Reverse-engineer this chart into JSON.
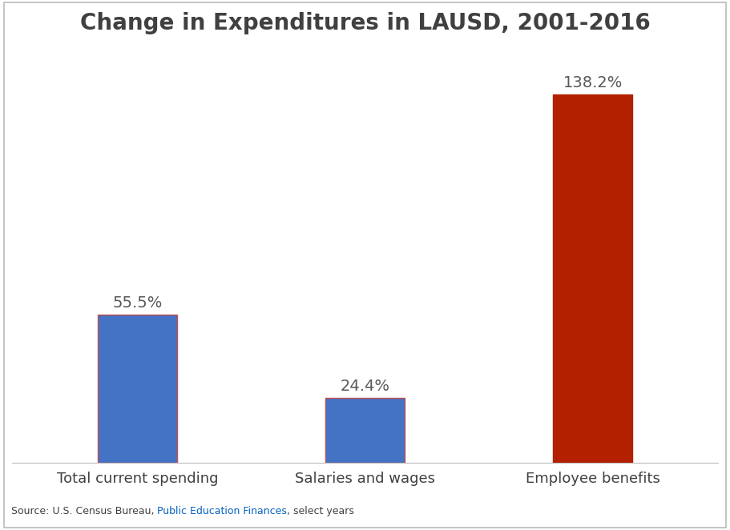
{
  "title": "Change in Expenditures in LAUSD, 2001-2016",
  "categories": [
    "Total current spending",
    "Salaries and wages",
    "Employee benefits"
  ],
  "values": [
    55.5,
    24.4,
    138.2
  ],
  "labels": [
    "55.5%",
    "24.4%",
    "138.2%"
  ],
  "bar_colors": [
    "#4472C4",
    "#4472C4",
    "#B22000"
  ],
  "bar_edge_colors": [
    "#C0504D",
    "#C0504D",
    "#B22000"
  ],
  "background_color": "#FFFFFF",
  "title_fontsize": 20,
  "title_color": "#404040",
  "label_fontsize": 14,
  "label_color": "#595959",
  "tick_fontsize": 13,
  "tick_color": "#404040",
  "source_prefix": "Source: U.S. Census Bureau, ",
  "source_link": "Public Education Finances",
  "source_suffix": ", select years",
  "source_link_color": "#0563C1",
  "source_color": "#404040",
  "source_fontsize": 9,
  "ylim": [
    0,
    155
  ],
  "bar_width": 0.35,
  "xlim": [
    -0.55,
    2.55
  ],
  "x_positions": [
    0,
    1,
    2
  ]
}
